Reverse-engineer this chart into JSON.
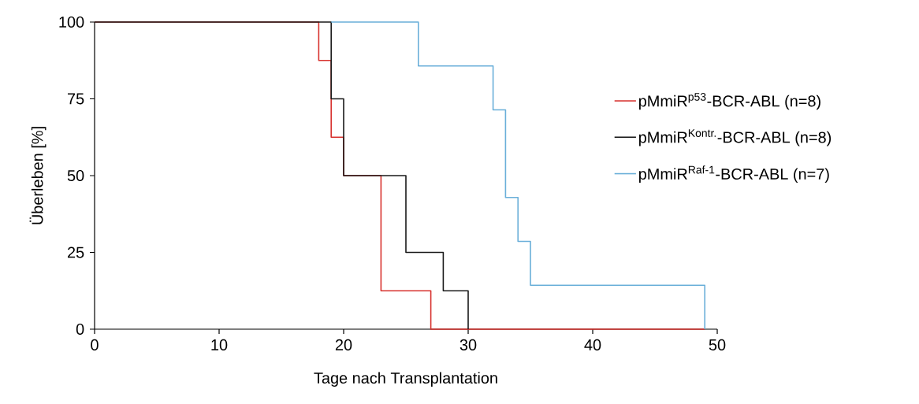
{
  "chart_data": {
    "type": "step",
    "xlabel": "Tage nach Transplantation",
    "ylabel": "Überleben [%]",
    "xlim": [
      0,
      50
    ],
    "ylim": [
      0,
      100
    ],
    "xticks": [
      0,
      10,
      20,
      30,
      40,
      50
    ],
    "yticks": [
      0,
      25,
      50,
      75,
      100
    ],
    "legend": "right",
    "marker": "none",
    "line_style": "solid",
    "series": [
      {
        "name": "pMmiR$^{p53}$-BCR-ABL (n=8)",
        "color": "#d7322e",
        "x": [
          0,
          18,
          19,
          20,
          23,
          27,
          49
        ],
        "values": [
          100,
          87.5,
          62.5,
          50,
          12.5,
          0,
          0
        ]
      },
      {
        "name": "pMmiR$^{Kontr.}$-BCR-ABL (n=8)",
        "color": "#1a1a1a",
        "x": [
          0,
          19,
          20,
          25,
          28,
          30
        ],
        "values": [
          100,
          75,
          50,
          25,
          12.5,
          0
        ]
      },
      {
        "name": "pMmiR$^{Raf-1}$-BCR-ABL (n=7)",
        "color": "#6aafd9",
        "x": [
          19,
          26,
          32,
          33,
          34,
          35,
          49
        ],
        "values": [
          100,
          85.7,
          71.4,
          42.9,
          28.6,
          14.3,
          0
        ]
      }
    ]
  }
}
